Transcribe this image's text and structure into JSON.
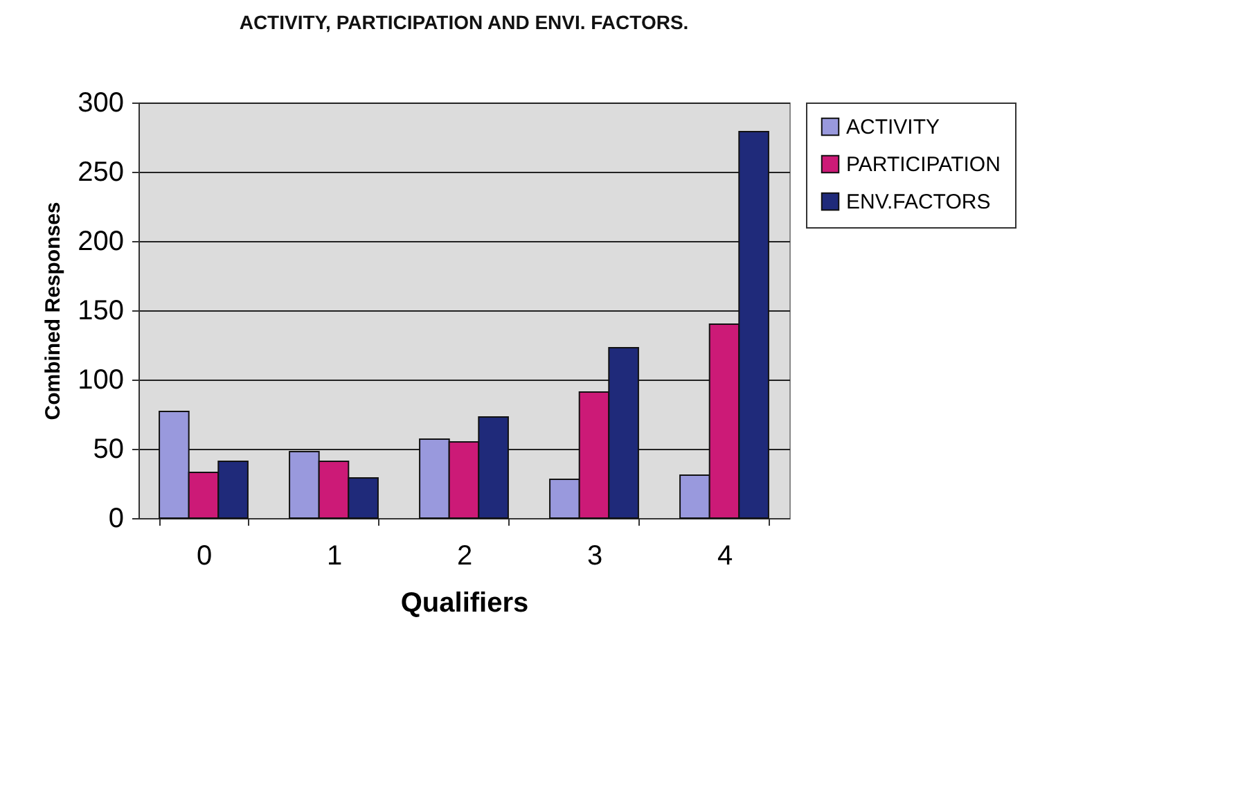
{
  "chart_data": {
    "type": "bar",
    "title": "ACTIVITY, PARTICIPATION AND ENVI. FACTORS.",
    "xlabel": "Qualifiers",
    "ylabel": "Combined Responses",
    "categories": [
      "0",
      "1",
      "2",
      "3",
      "4"
    ],
    "series": [
      {
        "name": "ACTIVITY",
        "color": "#9999dd",
        "values": [
          77,
          48,
          57,
          28,
          31
        ]
      },
      {
        "name": "PARTICIPATION",
        "color": "#cc1a77",
        "values": [
          33,
          41,
          55,
          91,
          140
        ]
      },
      {
        "name": "ENV.FACTORS",
        "color": "#1f2a7a",
        "values": [
          41,
          29,
          73,
          123,
          279
        ]
      }
    ],
    "ylim": [
      0,
      300
    ],
    "yticks": [
      0,
      50,
      100,
      150,
      200,
      250,
      300
    ],
    "grid": "y",
    "legend": "right"
  }
}
